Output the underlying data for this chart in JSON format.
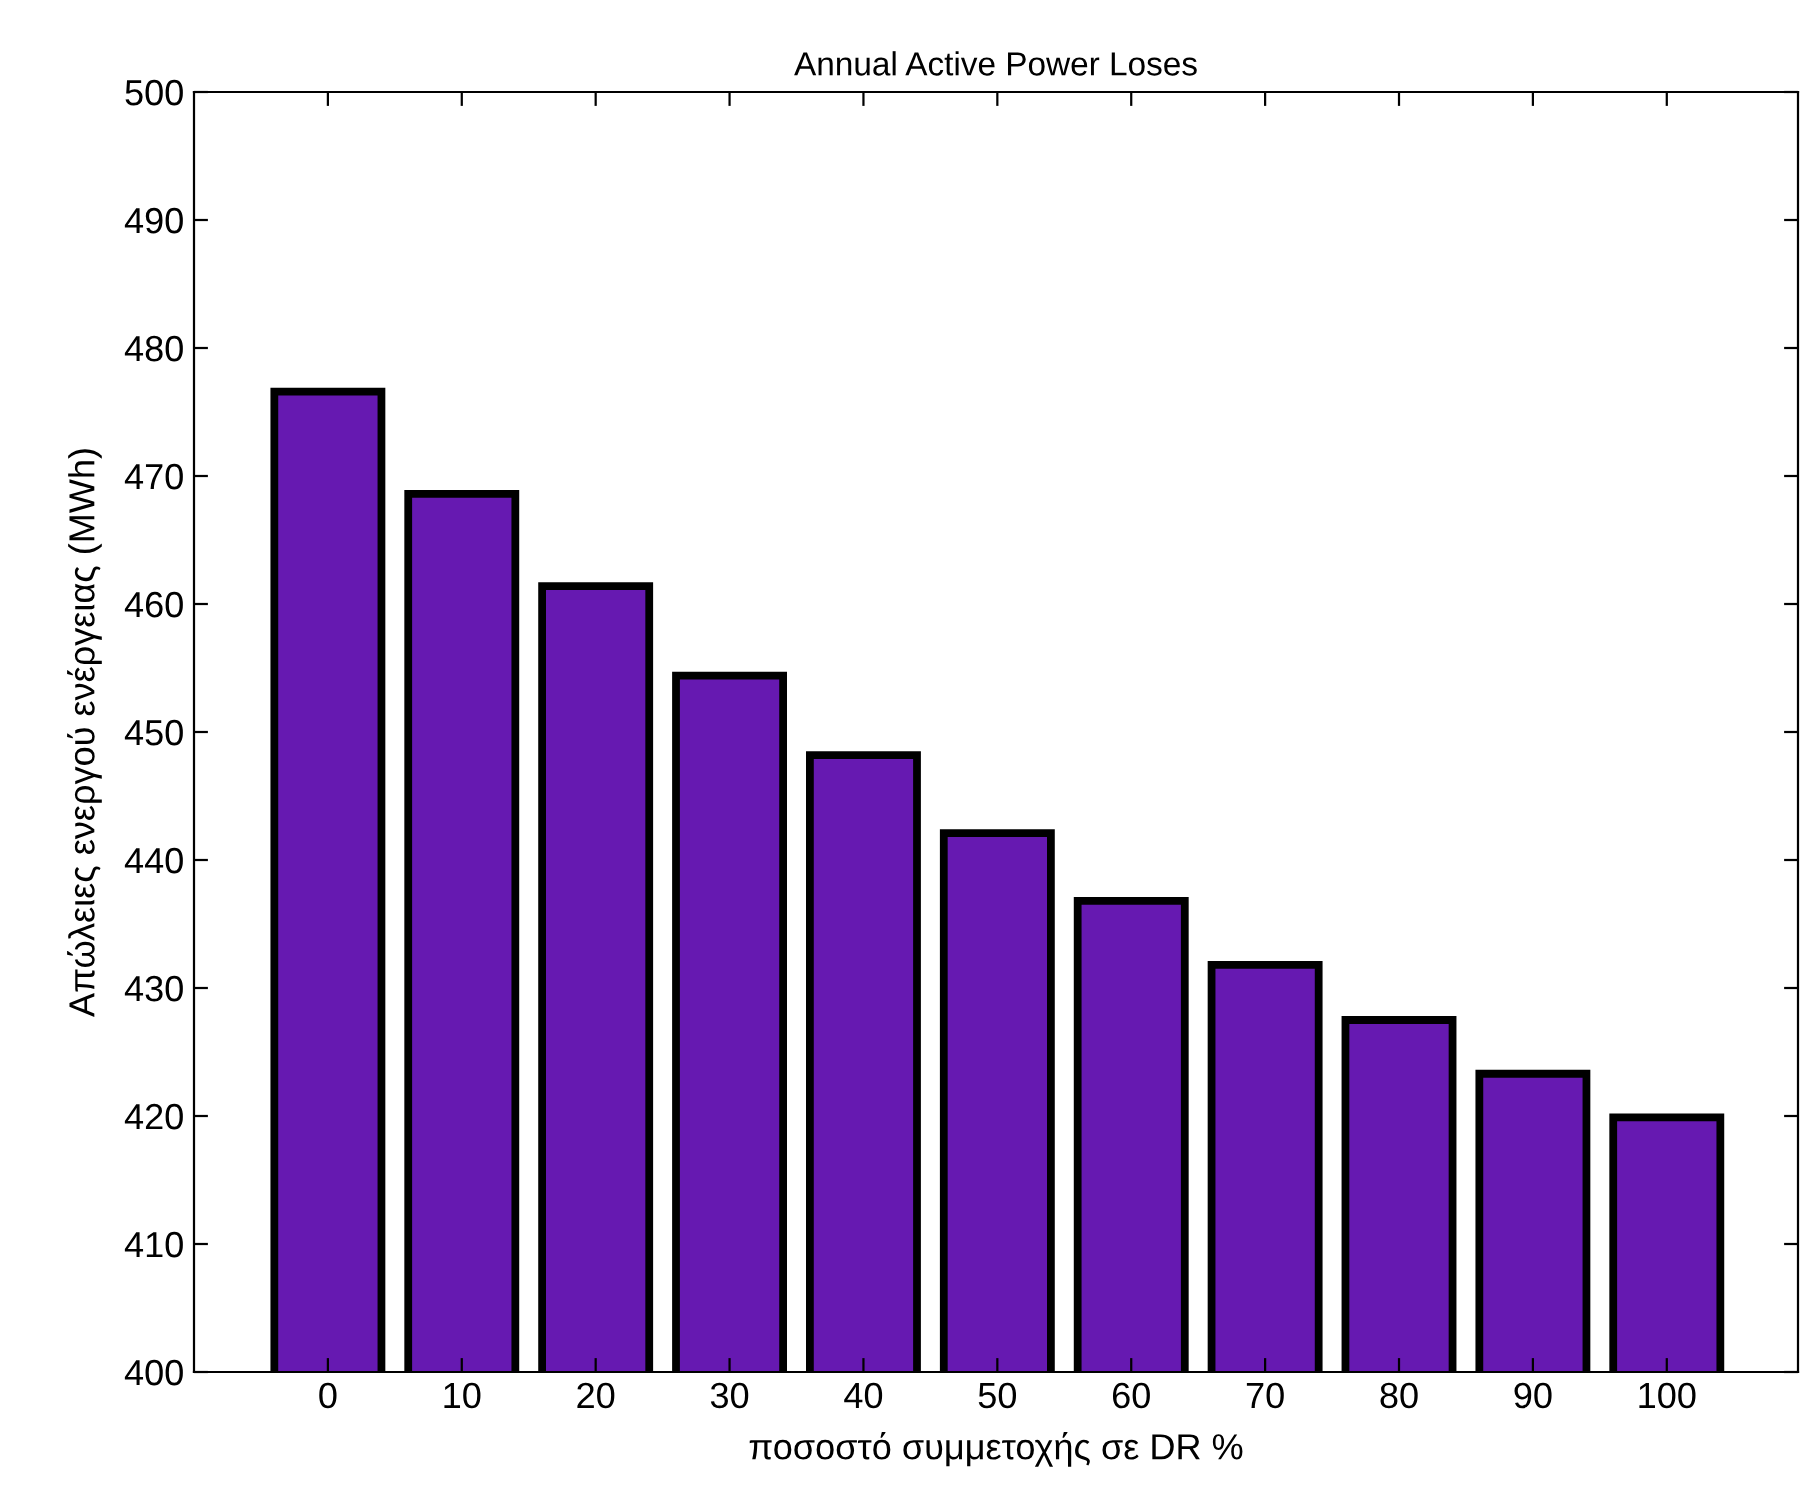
{
  "chart_data": {
    "type": "bar",
    "title": "Annual Active Power Loses",
    "xlabel": "ποσοστό συμμετοχής σε DR %",
    "ylabel": "Απώλειες ενεργού ενέργειας (MWh)",
    "categories": [
      "0",
      "10",
      "20",
      "30",
      "40",
      "50",
      "60",
      "70",
      "80",
      "90",
      "100"
    ],
    "values": [
      476.6,
      468.6,
      461.4,
      454.4,
      448.2,
      442.1,
      436.8,
      431.8,
      427.5,
      423.3,
      419.9
    ],
    "color": "#6619b1",
    "ylim": [
      400,
      500
    ],
    "yticks": [
      400,
      410,
      420,
      430,
      440,
      450,
      460,
      470,
      480,
      490,
      500
    ],
    "grid": false
  }
}
